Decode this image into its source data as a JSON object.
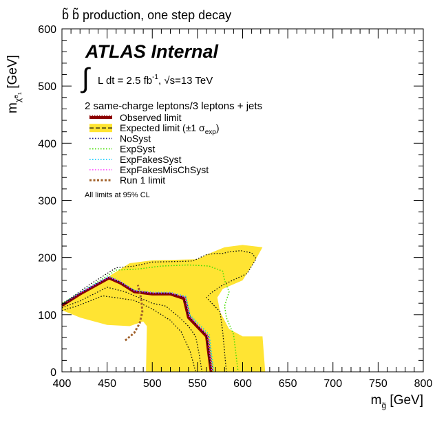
{
  "title": "b̃ b̃ production, one step decay",
  "chart_data": {
    "type": "line",
    "title": "b̃ b̃ production, one step decay",
    "xlabel": "m_g̃ [GeV]",
    "ylabel": "m_χ̃⁰₁ [GeV]",
    "xlim": [
      400,
      800
    ],
    "ylim": [
      0,
      600
    ],
    "x_ticks": [
      400,
      450,
      500,
      550,
      600,
      650,
      700,
      750,
      800
    ],
    "y_ticks": [
      0,
      100,
      200,
      300,
      400,
      500,
      600
    ],
    "x_tick_labels": [
      "400",
      "450",
      "500",
      "550",
      "600",
      "650",
      "700",
      "750",
      "800"
    ],
    "y_tick_labels": [
      "0",
      "100",
      "200",
      "300",
      "400",
      "500",
      "600"
    ],
    "grid": false,
    "legend_position": "top-left",
    "atlas_label": "ATLAS Internal",
    "lumi_text": "L dt = 2.5 fb⁻¹, √s=13 TeV",
    "channel_text": "2 same-charge leptons/3 leptons + jets",
    "cl_text": "All limits at 95% CL",
    "band": {
      "name": "Expected limit (±1 σ_exp)",
      "color": "#ffe433",
      "points": [
        [
          400,
          120
        ],
        [
          450,
          165
        ],
        [
          475,
          190
        ],
        [
          500,
          195
        ],
        [
          550,
          197
        ],
        [
          560,
          205
        ],
        [
          580,
          218
        ],
        [
          600,
          222
        ],
        [
          622,
          218
        ],
        [
          614,
          195
        ],
        [
          600,
          160
        ],
        [
          578,
          145
        ],
        [
          572,
          130
        ],
        [
          575,
          105
        ],
        [
          585,
          75
        ],
        [
          600,
          62
        ],
        [
          622,
          62
        ],
        [
          625,
          0
        ],
        [
          493,
          0
        ],
        [
          494,
          80
        ],
        [
          490,
          88
        ],
        [
          475,
          80
        ],
        [
          450,
          82
        ],
        [
          420,
          95
        ],
        [
          400,
          108
        ]
      ]
    },
    "series": [
      {
        "name": "Observed limit",
        "color": "#8b0000",
        "style": "solid",
        "width": 4,
        "x": [
          400,
          420,
          452,
          465,
          480,
          500,
          520,
          535,
          540,
          560,
          565
        ],
        "y": [
          116,
          136,
          164,
          155,
          140,
          136,
          136,
          128,
          95,
          62,
          0
        ]
      },
      {
        "name": "Expected limit (±1 σ_exp)",
        "color": "#111111",
        "style": "dash",
        "width": 1.2,
        "x": [
          400,
          420,
          452,
          465,
          480,
          500,
          520,
          535,
          540,
          560,
          565
        ],
        "y": [
          118,
          138,
          166,
          157,
          142,
          138,
          138,
          131,
          98,
          64,
          0
        ]
      },
      {
        "name": "NoSyst",
        "color": "#1a1a8c",
        "style": "dot",
        "width": 1.5,
        "x": [
          400,
          420,
          452,
          465,
          480,
          500,
          520,
          537,
          542,
          562,
          567
        ],
        "y": [
          117,
          137,
          165,
          156,
          141,
          137,
          137,
          130,
          96,
          63,
          0
        ]
      },
      {
        "name": "ExpSyst",
        "color": "#44dd00",
        "style": "dot",
        "width": 1.5,
        "x": [
          400,
          430,
          460,
          485,
          510,
          540,
          563,
          578,
          580,
          585,
          580,
          582,
          590,
          595
        ],
        "y": [
          120,
          148,
          178,
          180,
          185,
          187,
          185,
          176,
          160,
          140,
          115,
          95,
          65,
          0
        ]
      },
      {
        "name": "ExpFakesSyst",
        "color": "#00c8ff",
        "style": "dot",
        "width": 1.5,
        "x": [
          400,
          420,
          452,
          465,
          480,
          500,
          520,
          537,
          542,
          563,
          568
        ],
        "y": [
          119,
          139,
          167,
          158,
          143,
          139,
          139,
          132,
          99,
          65,
          0
        ]
      },
      {
        "name": "ExpFakesMisChSyst",
        "color": "#ff33ff",
        "style": "dot",
        "width": 1.5,
        "x": [
          400,
          420,
          452,
          465,
          480,
          500,
          520,
          536,
          541,
          561,
          566
        ],
        "y": [
          118,
          138,
          166,
          157,
          142,
          138,
          138,
          131,
          97,
          64,
          0
        ]
      },
      {
        "name": "",
        "color": "#111111",
        "style": "dot",
        "width": 1.3,
        "x": [
          400,
          420,
          450,
          470,
          500,
          515,
          528,
          540,
          548,
          552,
          555
        ],
        "y": [
          112,
          124,
          148,
          140,
          120,
          115,
          98,
          80,
          62,
          30,
          0
        ]
      },
      {
        "name": "",
        "color": "#111111",
        "style": "dot",
        "width": 1.3,
        "x": [
          400,
          430,
          460,
          480,
          500,
          530,
          545,
          553,
          560,
          570,
          578,
          585,
          598,
          610,
          615,
          605,
          578,
          565,
          560,
          575,
          578,
          582
        ],
        "y": [
          118,
          152,
          182,
          185,
          192,
          193,
          194,
          200,
          205,
          207,
          207,
          210,
          212,
          208,
          198,
          172,
          152,
          138,
          130,
          105,
          70,
          0
        ]
      },
      {
        "name": "",
        "color": "#111111",
        "style": "dot",
        "width": 1.3,
        "x": [
          400,
          420,
          445,
          480,
          500,
          520,
          532,
          542,
          548
        ],
        "y": [
          107,
          117,
          133,
          125,
          110,
          90,
          70,
          35,
          0
        ]
      },
      {
        "name": "Run 1 limit",
        "color": "#a0602a",
        "style": "run1",
        "width": 3,
        "x": [
          470,
          480,
          486,
          489,
          488,
          486,
          484
        ],
        "y": [
          55,
          68,
          85,
          105,
          125,
          140,
          152
        ]
      }
    ],
    "legend": [
      {
        "label": "Observed limit",
        "kind": "observed"
      },
      {
        "label": "Expected limit (±1 σ_exp)",
        "kind": "expected"
      },
      {
        "label": "NoSyst",
        "kind": "line",
        "color": "#1a1a8c"
      },
      {
        "label": "ExpSyst",
        "kind": "line",
        "color": "#44dd00"
      },
      {
        "label": "ExpFakesSyst",
        "kind": "line",
        "color": "#00c8ff"
      },
      {
        "label": "ExpFakesMisChSyst",
        "kind": "line",
        "color": "#ff33ff"
      },
      {
        "label": "Run 1 limit",
        "kind": "run1",
        "color": "#a0602a"
      }
    ]
  }
}
